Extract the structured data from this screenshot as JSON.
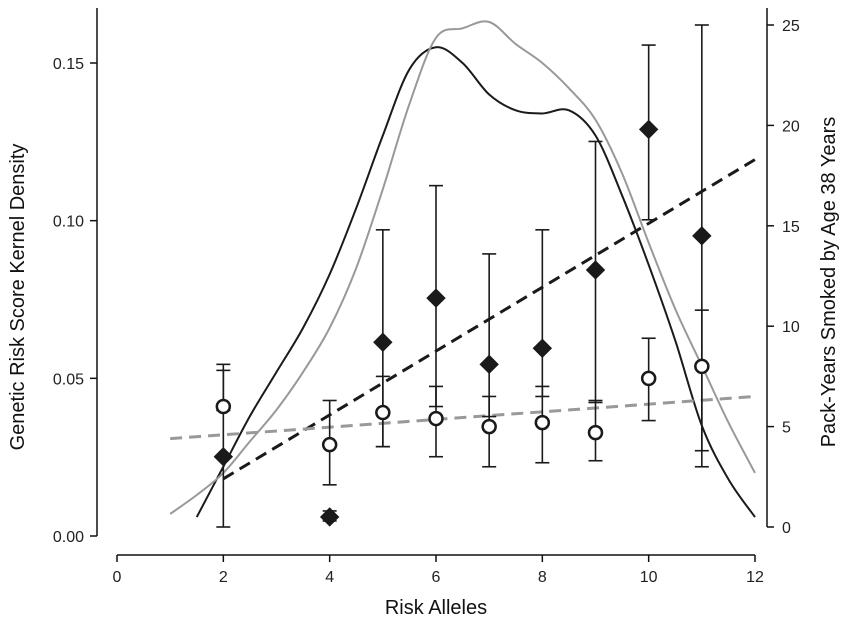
{
  "chart_data": {
    "type": "line",
    "xlabel": "Risk Alleles",
    "ylabel_left": "Genetic Risk Score Kernel Density",
    "ylabel_right": "Pack-Years Smoked by Age 38 Years",
    "xlim": [
      0,
      12
    ],
    "ylim_left": [
      0,
      0.16
    ],
    "ylim_right": [
      0,
      25
    ],
    "x_ticks": [
      "0",
      "2",
      "4",
      "6",
      "8",
      "10",
      "12"
    ],
    "y_left_ticks": [
      "0.00",
      "0.05",
      "0.10",
      "0.15"
    ],
    "y_right_ticks": [
      "0",
      "5",
      "10",
      "15",
      "20",
      "25"
    ],
    "grid": false,
    "series": [
      {
        "kind": "density_curve",
        "axis": "left",
        "color": "#1a1a1a",
        "x": [
          1.5,
          2,
          2.5,
          3,
          3.5,
          4,
          4.5,
          5,
          5.5,
          6,
          6.5,
          7,
          7.5,
          8,
          8.5,
          9,
          9.5,
          10,
          10.5,
          11,
          11.5,
          12
        ],
        "y": [
          0.006,
          0.022,
          0.038,
          0.052,
          0.066,
          0.083,
          0.104,
          0.127,
          0.148,
          0.155,
          0.15,
          0.14,
          0.135,
          0.134,
          0.135,
          0.127,
          0.108,
          0.086,
          0.062,
          0.035,
          0.018,
          0.006
        ]
      },
      {
        "kind": "density_curve",
        "axis": "left",
        "color": "#999999",
        "x": [
          1,
          1.5,
          2,
          2.5,
          3,
          3.5,
          4,
          4.5,
          5,
          5.5,
          6,
          6.5,
          7,
          7.5,
          8,
          8.5,
          9,
          9.5,
          10,
          10.5,
          11,
          11.5,
          12
        ],
        "y": [
          0.007,
          0.013,
          0.02,
          0.03,
          0.04,
          0.052,
          0.066,
          0.085,
          0.11,
          0.137,
          0.158,
          0.161,
          0.163,
          0.156,
          0.15,
          0.142,
          0.132,
          0.115,
          0.093,
          0.072,
          0.054,
          0.036,
          0.02
        ]
      },
      {
        "kind": "points",
        "axis": "right",
        "marker": "diamond",
        "color": "#1a1a1a",
        "x": [
          2,
          4,
          5,
          6,
          7,
          8,
          9,
          10,
          11
        ],
        "y": [
          3.5,
          0.5,
          9.2,
          11.4,
          8.1,
          8.9,
          12.8,
          19.8,
          14.5
        ],
        "err_low": [
          0,
          0.3,
          4.0,
          6.0,
          5.5,
          6.5,
          6.2,
          15.3,
          3.8
        ],
        "err_high": [
          7.8,
          0.8,
          14.8,
          17.0,
          13.6,
          14.8,
          19.2,
          24.0,
          25.0
        ]
      },
      {
        "kind": "points",
        "axis": "right",
        "marker": "open-circle",
        "color": "#1a1a1a",
        "x": [
          2,
          4,
          5,
          6,
          7,
          8,
          9,
          10,
          11
        ],
        "y": [
          6.0,
          4.1,
          5.7,
          5.4,
          5.0,
          5.2,
          4.7,
          7.4,
          8.0
        ],
        "err_low": [
          5.8,
          2.1,
          4.0,
          3.5,
          3.0,
          3.2,
          3.3,
          5.3,
          3.0
        ],
        "err_high": [
          8.1,
          6.3,
          7.5,
          7.0,
          6.5,
          7.0,
          6.3,
          9.4,
          10.8
        ]
      },
      {
        "kind": "trend_line",
        "axis": "right",
        "style": "dashed",
        "color": "#1a1a1a",
        "x": [
          2,
          12
        ],
        "y": [
          2.4,
          18.3
        ]
      },
      {
        "kind": "trend_line",
        "axis": "right",
        "style": "dashed",
        "color": "#999999",
        "x": [
          1,
          12
        ],
        "y": [
          4.4,
          6.5
        ]
      }
    ]
  }
}
